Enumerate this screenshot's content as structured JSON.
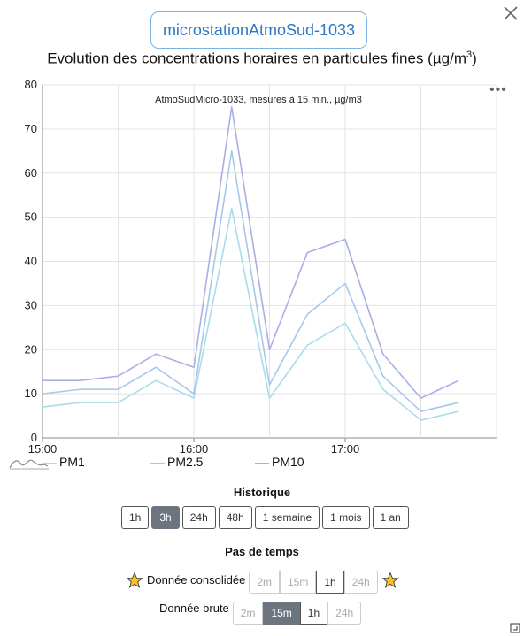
{
  "station_label": "microstationAtmoSud-1033",
  "title_main": "Evolution des concentrations horaires en particules fines (µg/m",
  "title_sup": "3",
  "title_end": ")",
  "menu_label": "•••",
  "chart_data": {
    "type": "line",
    "subtitle": "AtmoSudMicro-1033, mesures à 15 min.,  µg/m3",
    "x_tick_labels": [
      "15:00",
      "16:00",
      "17:00"
    ],
    "ylim": [
      0,
      80
    ],
    "y_ticks": [
      0,
      10,
      20,
      30,
      40,
      50,
      60,
      70,
      80
    ],
    "grid": true,
    "legend_position": "bottom-left",
    "series": [
      {
        "name": "PM1",
        "color": "#a9dcea",
        "values": [
          7,
          8,
          8,
          13,
          9,
          52,
          9,
          21,
          26,
          11,
          4,
          6
        ]
      },
      {
        "name": "PM2.5",
        "color": "#a6c8ea",
        "values": [
          10,
          11,
          11,
          16,
          10,
          65,
          12,
          28,
          35,
          14,
          6,
          8
        ]
      },
      {
        "name": "PM10",
        "color": "#a9aee6",
        "values": [
          13,
          13,
          14,
          19,
          16,
          75,
          20,
          42,
          45,
          19,
          9,
          13
        ]
      }
    ]
  },
  "historique": {
    "title": "Historique",
    "buttons": [
      "1h",
      "3h",
      "24h",
      "48h",
      "1 semaine",
      "1 mois",
      "1 an"
    ],
    "active": "3h"
  },
  "pas_de_temps": {
    "title": "Pas de temps",
    "consolidee": {
      "label": "Donnée consolidée",
      "buttons": [
        "2m",
        "15m",
        "1h",
        "24h"
      ]
    },
    "brute": {
      "label": "Donnée brute",
      "buttons": [
        "2m",
        "15m",
        "1h",
        "24h"
      ],
      "active": "15m"
    }
  }
}
